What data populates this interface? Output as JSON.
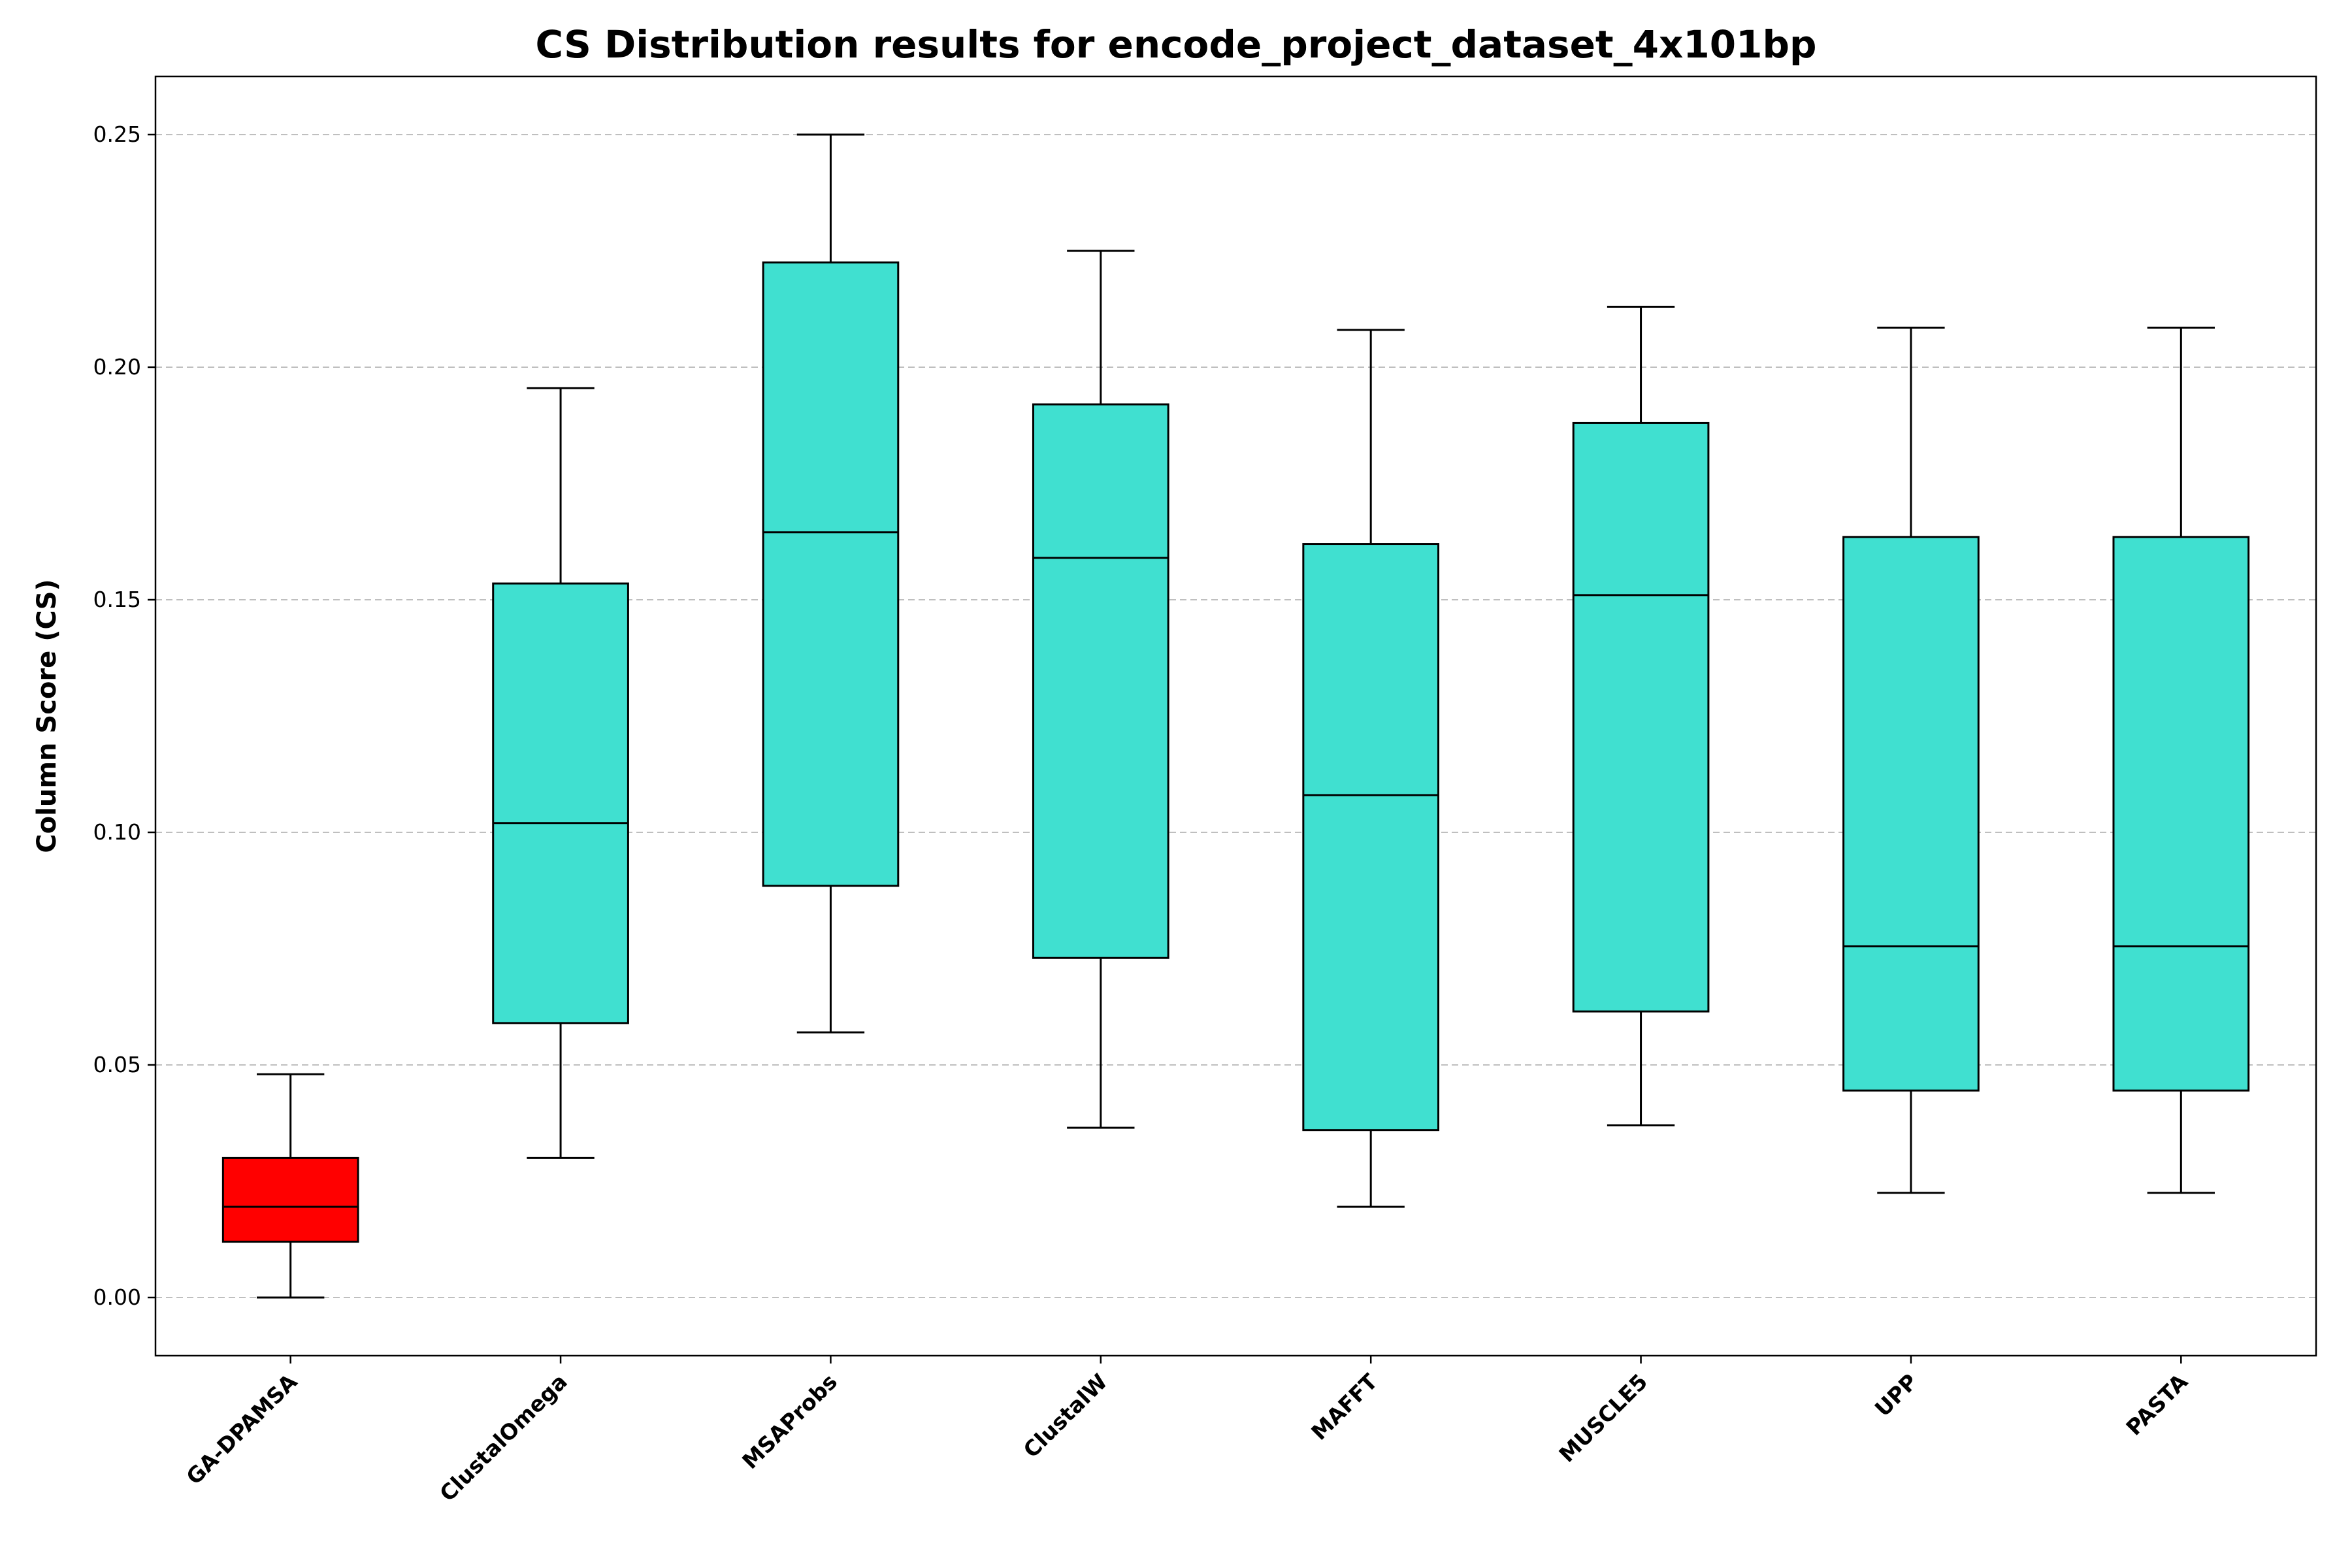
{
  "chart_data": {
    "type": "box",
    "title": "CS Distribution results for encode_project_dataset_4x101bp",
    "xlabel": "",
    "ylabel": "Column Score (CS)",
    "ylim": [
      -0.0125,
      0.2625
    ],
    "yticks": [
      0.0,
      0.05,
      0.1,
      0.15,
      0.2,
      0.25
    ],
    "ytick_labels": [
      "0.00",
      "0.05",
      "0.10",
      "0.15",
      "0.20",
      "0.25"
    ],
    "grid": "y-dashed",
    "categories": [
      "GA-DPAMSA",
      "ClustalOmega",
      "MSAProbs",
      "ClustalW",
      "MAFFT",
      "MUSCLE5",
      "UPP",
      "PASTA"
    ],
    "boxes": [
      {
        "min": 0.0,
        "q1": 0.012,
        "median": 0.0195,
        "q3": 0.03,
        "max": 0.048,
        "color": "#ff0000"
      },
      {
        "min": 0.03,
        "q1": 0.059,
        "median": 0.102,
        "q3": 0.1535,
        "max": 0.1955,
        "color": "#40e0d0"
      },
      {
        "min": 0.057,
        "q1": 0.0885,
        "median": 0.1645,
        "q3": 0.2225,
        "max": 0.25,
        "color": "#40e0d0"
      },
      {
        "min": 0.0365,
        "q1": 0.073,
        "median": 0.159,
        "q3": 0.192,
        "max": 0.225,
        "color": "#40e0d0"
      },
      {
        "min": 0.0195,
        "q1": 0.036,
        "median": 0.108,
        "q3": 0.162,
        "max": 0.208,
        "color": "#40e0d0"
      },
      {
        "min": 0.037,
        "q1": 0.0615,
        "median": 0.151,
        "q3": 0.188,
        "max": 0.213,
        "color": "#40e0d0"
      },
      {
        "min": 0.0225,
        "q1": 0.0445,
        "median": 0.0755,
        "q3": 0.1635,
        "max": 0.2085,
        "color": "#40e0d0"
      },
      {
        "min": 0.0225,
        "q1": 0.0445,
        "median": 0.0755,
        "q3": 0.1635,
        "max": 0.2085,
        "color": "#40e0d0"
      }
    ]
  }
}
